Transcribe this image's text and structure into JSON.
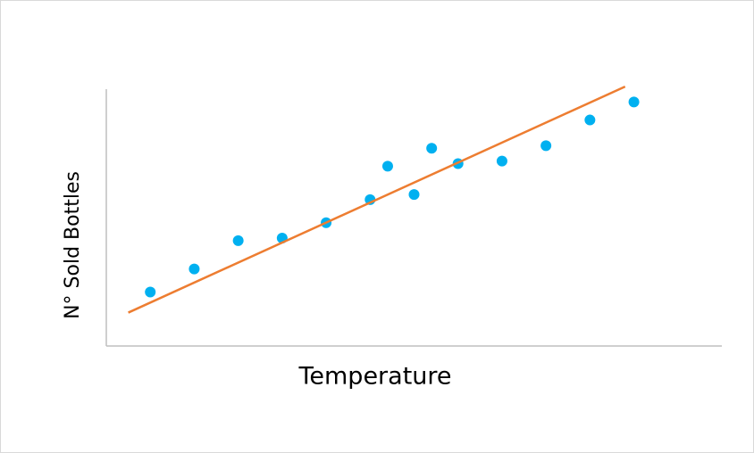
{
  "chart_data": {
    "type": "scatter",
    "xlabel": "Temperature",
    "ylabel": "N° Sold Bottles",
    "xlim": [
      0,
      14
    ],
    "ylim": [
      0,
      10
    ],
    "series": [
      {
        "type": "scatter",
        "color": "#00b0f0",
        "x": [
          1,
          2,
          3,
          4,
          5,
          6,
          6.4,
          7,
          7.4,
          8,
          9,
          10,
          11,
          12
        ],
        "values": [
          2.1,
          3.0,
          4.1,
          4.2,
          4.8,
          5.7,
          7.0,
          5.9,
          7.7,
          7.1,
          7.2,
          7.8,
          8.8,
          9.5
        ]
      },
      {
        "type": "line",
        "color": "#ed7d31",
        "x": [
          0.5,
          11.8
        ],
        "values": [
          1.3,
          10.1
        ]
      }
    ]
  }
}
